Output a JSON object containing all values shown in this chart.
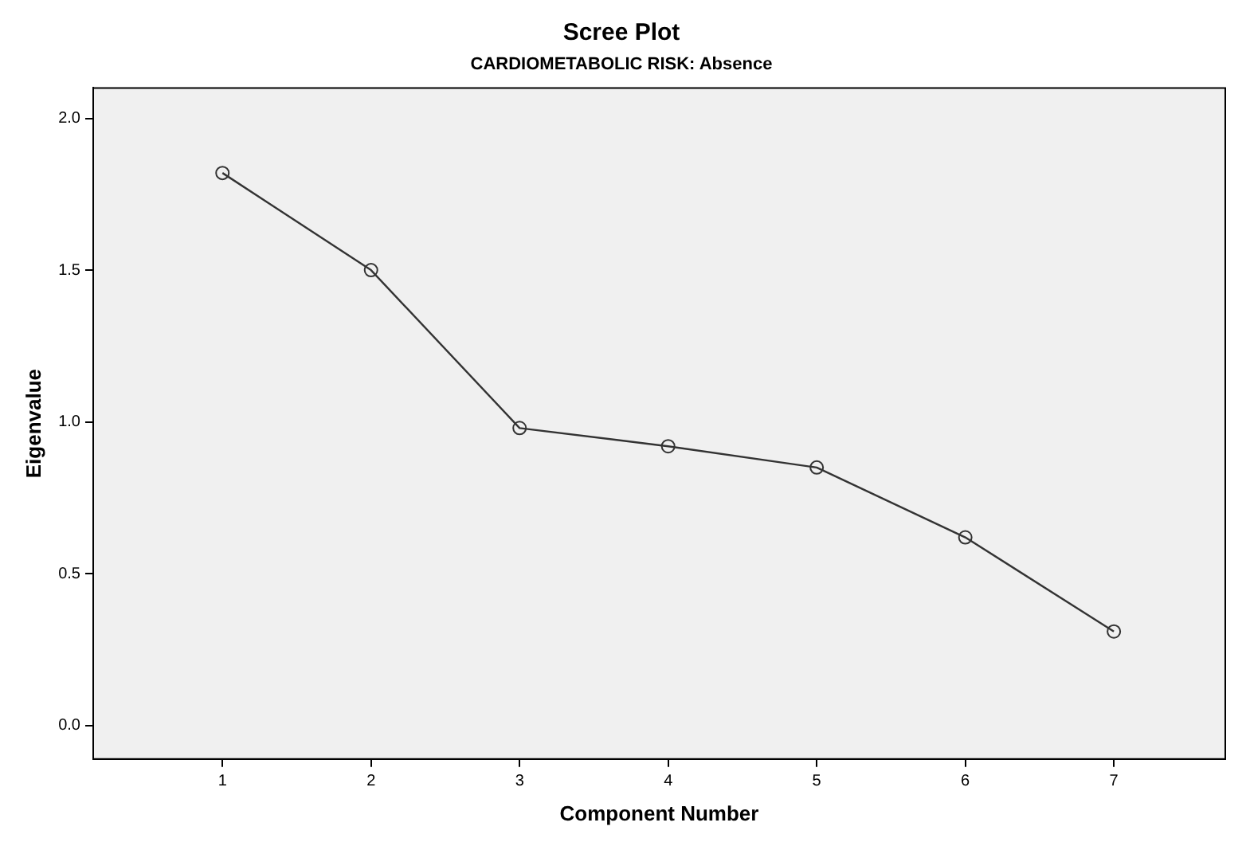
{
  "chart_data": {
    "type": "line",
    "title": "Scree Plot",
    "subtitle": "CARDIOMETABOLIC RISK: Absence",
    "xlabel": "Component Number",
    "ylabel": "Eigenvalue",
    "x": [
      1,
      2,
      3,
      4,
      5,
      6,
      7
    ],
    "series": [
      {
        "color": "#333333",
        "values": [
          1.82,
          1.5,
          0.98,
          0.92,
          0.85,
          0.62,
          0.31
        ]
      }
    ],
    "xlim": [
      0.13,
      7.75
    ],
    "xticks": [
      1,
      2,
      3,
      4,
      5,
      6,
      7
    ],
    "ylim": [
      -0.11,
      2.1
    ],
    "yticks": [
      {
        "value": 0,
        "label": "0.0"
      },
      {
        "value": 0.5,
        "label": "0.5"
      },
      {
        "value": 1,
        "label": "1.0"
      },
      {
        "value": 1.5,
        "label": "1.5"
      },
      {
        "value": 2,
        "label": "2.0"
      }
    ],
    "marker": "circle",
    "line_style": "solid",
    "legend": false
  }
}
